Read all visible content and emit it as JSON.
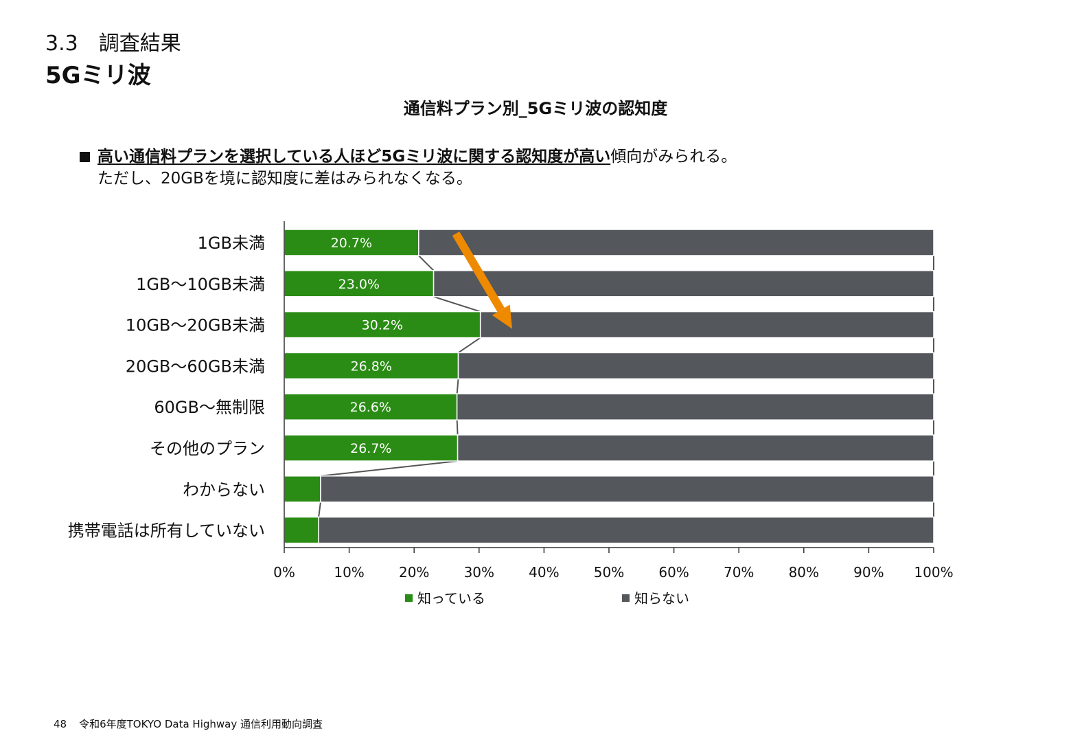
{
  "header": {
    "section_number": "3.3　調査結果",
    "title": "5Gミリ波"
  },
  "finding": {
    "emphasis": "高い通信料プランを選択している人ほど5Gミリ波に関する認知度が高い",
    "rest": "傾向がみられる。",
    "line2": "ただし、20GBを境に認知度に差はみられなくなる。"
  },
  "footer": {
    "page_number": "48",
    "source": "令和6年度TOKYO Data Highway 通信利用動向調査"
  },
  "colors": {
    "known": "#2a8c14",
    "unknown": "#54575c",
    "arrow": "#ee8a00",
    "axis": "#333333"
  },
  "chart_data": {
    "type": "bar",
    "orientation": "horizontal",
    "stacked": true,
    "title": "通信料プラン別_5Gミリ波の認知度",
    "categories": [
      "1GB未満",
      "1GB～10GB未満",
      "10GB～20GB未満",
      "20GB～60GB未満",
      "60GB～無制限",
      "その他のプラン",
      "わからない",
      "携帯電話は所有していない"
    ],
    "series": [
      {
        "name": "知っている",
        "values": [
          20.7,
          23.0,
          30.2,
          26.8,
          26.6,
          26.7,
          5.6,
          5.3
        ],
        "labels": [
          "20.7%",
          "23.0%",
          "30.2%",
          "26.8%",
          "26.6%",
          "26.7%",
          "",
          ""
        ]
      },
      {
        "name": "知らない",
        "values": [
          79.3,
          77.0,
          69.8,
          73.2,
          73.4,
          73.3,
          94.4,
          94.7
        ]
      }
    ],
    "xlim": [
      0,
      100
    ],
    "x_ticks": [
      "0%",
      "10%",
      "20%",
      "30%",
      "40%",
      "50%",
      "60%",
      "70%",
      "80%",
      "90%",
      "100%"
    ],
    "legend_position": "bottom",
    "grid": false,
    "series_lines": true,
    "annotation": "orange arrow from 1GB未満 to 10GB～20GB未満 indicating rising awareness"
  }
}
